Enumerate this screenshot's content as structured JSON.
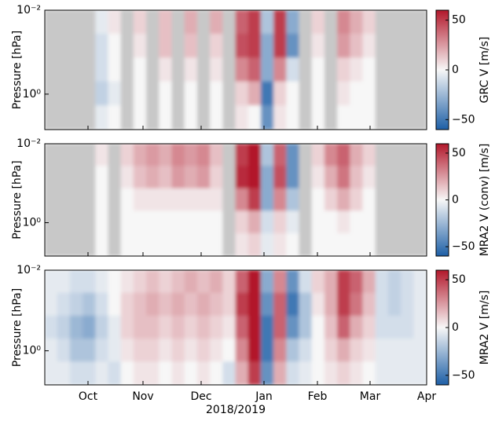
{
  "chart_data": [
    {
      "type": "heatmap",
      "ylabel": "Pressure [hPa]",
      "colorbar_label": "GRC V [m/s]",
      "log_y": true,
      "ylim": [
        7,
        0.01
      ],
      "yticks": [
        {
          "value": 0.01,
          "label": "10⁻²"
        },
        {
          "value": 1,
          "label": "10⁰"
        }
      ],
      "clim": [
        -60,
        60
      ],
      "cticks": [
        {
          "value": -50,
          "label": "−50"
        },
        0,
        50
      ],
      "colormap": [
        "#1d5fa6",
        "#f7f7f7",
        "#b2182b"
      ],
      "missing_color": "#c8c8c8",
      "values": [
        [
          null,
          null,
          null,
          null,
          -5,
          5,
          null,
          10,
          null,
          15,
          null,
          20,
          null,
          20,
          null,
          40,
          50,
          -20,
          50,
          -30,
          null,
          10,
          null,
          30,
          20,
          10,
          null,
          null,
          null,
          null
        ],
        [
          null,
          null,
          null,
          null,
          -10,
          0,
          null,
          5,
          null,
          15,
          null,
          15,
          null,
          10,
          null,
          45,
          50,
          -30,
          50,
          -40,
          null,
          5,
          null,
          25,
          15,
          5,
          null,
          null,
          null,
          null
        ],
        [
          null,
          null,
          null,
          null,
          -10,
          0,
          null,
          0,
          null,
          5,
          null,
          5,
          null,
          5,
          null,
          30,
          40,
          -30,
          30,
          -10,
          null,
          0,
          null,
          10,
          5,
          0,
          null,
          null,
          null,
          null
        ],
        [
          null,
          null,
          null,
          null,
          -15,
          -5,
          null,
          0,
          null,
          0,
          null,
          0,
          null,
          0,
          null,
          10,
          20,
          -50,
          10,
          0,
          null,
          0,
          null,
          5,
          0,
          0,
          null,
          null,
          null,
          null
        ],
        [
          null,
          null,
          null,
          null,
          -5,
          0,
          null,
          0,
          null,
          0,
          null,
          0,
          null,
          0,
          null,
          5,
          0,
          -40,
          5,
          0,
          null,
          0,
          null,
          0,
          0,
          0,
          null,
          null,
          null,
          null
        ]
      ]
    },
    {
      "type": "heatmap",
      "ylabel": "Pressure [hPa]",
      "colorbar_label": "MRA2 V (conv) [m/s]",
      "log_y": true,
      "ylim": [
        7,
        0.01
      ],
      "yticks": [
        {
          "value": 0.01,
          "label": "10⁻²"
        },
        {
          "value": 1,
          "label": "10⁰"
        }
      ],
      "clim": [
        -60,
        60
      ],
      "cticks": [
        {
          "value": -50,
          "label": "−50"
        },
        0,
        50
      ],
      "colormap": [
        "#1d5fa6",
        "#f7f7f7",
        "#b2182b"
      ],
      "missing_color": "#c8c8c8",
      "values": [
        [
          null,
          null,
          null,
          null,
          5,
          null,
          10,
          20,
          25,
          20,
          30,
          25,
          30,
          15,
          null,
          50,
          60,
          -20,
          40,
          -40,
          null,
          10,
          30,
          40,
          20,
          10,
          null,
          null,
          null,
          null
        ],
        [
          null,
          null,
          null,
          null,
          0,
          null,
          5,
          15,
          20,
          15,
          25,
          20,
          25,
          10,
          null,
          55,
          60,
          -30,
          45,
          -40,
          null,
          5,
          20,
          35,
          15,
          5,
          null,
          null,
          null,
          null
        ],
        [
          null,
          null,
          null,
          null,
          0,
          null,
          0,
          5,
          5,
          5,
          5,
          5,
          5,
          5,
          null,
          30,
          50,
          -30,
          30,
          -20,
          null,
          0,
          10,
          20,
          10,
          0,
          null,
          null,
          null,
          null
        ],
        [
          null,
          null,
          null,
          null,
          0,
          null,
          0,
          0,
          0,
          0,
          0,
          0,
          0,
          0,
          null,
          10,
          20,
          -10,
          10,
          -5,
          null,
          0,
          0,
          5,
          0,
          0,
          null,
          null,
          null,
          null
        ],
        [
          null,
          null,
          null,
          null,
          0,
          null,
          0,
          0,
          0,
          0,
          0,
          0,
          0,
          0,
          null,
          5,
          10,
          -5,
          5,
          0,
          null,
          0,
          0,
          0,
          0,
          0,
          null,
          null,
          null,
          null
        ]
      ]
    },
    {
      "type": "heatmap",
      "ylabel": "Pressure [hPa]",
      "colorbar_label": "MRA2 V [m/s]",
      "log_y": true,
      "ylim": [
        7,
        0.01
      ],
      "yticks": [
        {
          "value": 0.01,
          "label": "10⁻²"
        },
        {
          "value": 1,
          "label": "10⁰"
        }
      ],
      "clim": [
        -60,
        60
      ],
      "cticks": [
        {
          "value": -50,
          "label": "−50"
        },
        0,
        50
      ],
      "colormap": [
        "#1d5fa6",
        "#f7f7f7",
        "#b2182b"
      ],
      "missing_color": "#c8c8c8",
      "xtick_labels": [
        "Oct",
        "Nov",
        "Dec",
        "Jan",
        "Feb",
        "Mar",
        "Apr"
      ],
      "xlabel": "2018/2019",
      "values": [
        [
          -5,
          -5,
          -10,
          -10,
          -5,
          0,
          5,
          10,
          15,
          10,
          15,
          20,
          15,
          20,
          10,
          40,
          60,
          -30,
          30,
          -40,
          -10,
          10,
          20,
          50,
          40,
          20,
          -10,
          -15,
          -10,
          -5
        ],
        [
          -5,
          -10,
          -15,
          -20,
          -10,
          0,
          10,
          15,
          20,
          15,
          20,
          15,
          20,
          15,
          10,
          50,
          60,
          -40,
          40,
          -50,
          -20,
          5,
          20,
          50,
          35,
          15,
          -10,
          -15,
          -10,
          -5
        ],
        [
          -10,
          -15,
          -25,
          -30,
          -15,
          -5,
          10,
          15,
          15,
          10,
          15,
          10,
          15,
          10,
          5,
          40,
          60,
          -50,
          40,
          -40,
          -20,
          0,
          15,
          40,
          20,
          10,
          -10,
          -10,
          -10,
          -5
        ],
        [
          -5,
          -10,
          -20,
          -20,
          -10,
          -5,
          5,
          10,
          10,
          5,
          10,
          5,
          10,
          5,
          0,
          30,
          60,
          -50,
          30,
          -20,
          -10,
          0,
          10,
          20,
          10,
          5,
          -5,
          -5,
          -5,
          -5
        ],
        [
          -5,
          -5,
          -10,
          -10,
          -5,
          -10,
          0,
          5,
          5,
          0,
          5,
          0,
          5,
          0,
          -10,
          20,
          50,
          -40,
          20,
          -10,
          -5,
          0,
          5,
          10,
          5,
          0,
          -5,
          -5,
          -5,
          -5
        ]
      ]
    }
  ]
}
